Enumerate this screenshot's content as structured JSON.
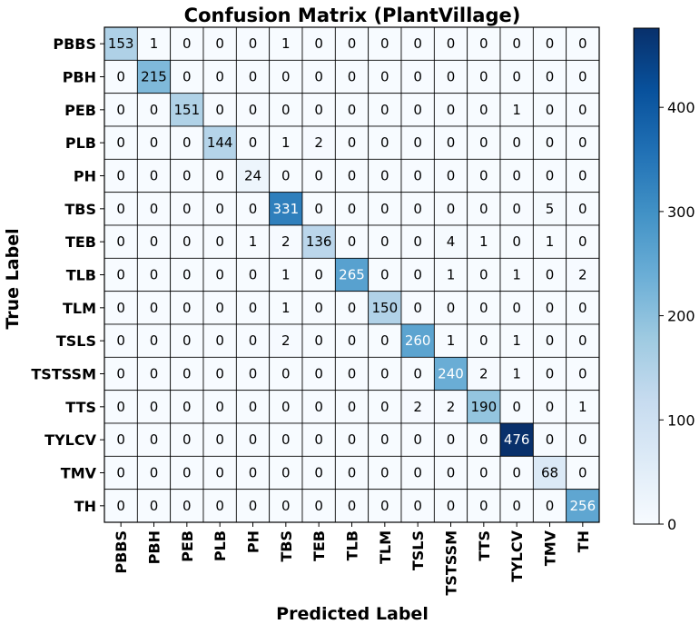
{
  "chart_data": {
    "type": "heatmap",
    "title": "Confusion Matrix (PlantVillage)",
    "xlabel": "Predicted Label",
    "ylabel": "True Label",
    "labels": [
      "PBBS",
      "PBH",
      "PEB",
      "PLB",
      "PH",
      "TBS",
      "TEB",
      "TLB",
      "TLM",
      "TSLS",
      "TSTSSM",
      "TTS",
      "TYLCV",
      "TMV",
      "TH"
    ],
    "matrix": [
      [
        153,
        1,
        0,
        0,
        0,
        1,
        0,
        0,
        0,
        0,
        0,
        0,
        0,
        0,
        0
      ],
      [
        0,
        215,
        0,
        0,
        0,
        0,
        0,
        0,
        0,
        0,
        0,
        0,
        0,
        0,
        0
      ],
      [
        0,
        0,
        151,
        0,
        0,
        0,
        0,
        0,
        0,
        0,
        0,
        0,
        1,
        0,
        0
      ],
      [
        0,
        0,
        0,
        144,
        0,
        1,
        2,
        0,
        0,
        0,
        0,
        0,
        0,
        0,
        0
      ],
      [
        0,
        0,
        0,
        0,
        24,
        0,
        0,
        0,
        0,
        0,
        0,
        0,
        0,
        0,
        0
      ],
      [
        0,
        0,
        0,
        0,
        0,
        331,
        0,
        0,
        0,
        0,
        0,
        0,
        0,
        5,
        0
      ],
      [
        0,
        0,
        0,
        0,
        1,
        2,
        136,
        0,
        0,
        0,
        4,
        1,
        0,
        1,
        0
      ],
      [
        0,
        0,
        0,
        0,
        0,
        1,
        0,
        265,
        0,
        0,
        1,
        0,
        1,
        0,
        2
      ],
      [
        0,
        0,
        0,
        0,
        0,
        1,
        0,
        0,
        150,
        0,
        0,
        0,
        0,
        0,
        0
      ],
      [
        0,
        0,
        0,
        0,
        0,
        2,
        0,
        0,
        0,
        260,
        1,
        0,
        1,
        0,
        0
      ],
      [
        0,
        0,
        0,
        0,
        0,
        0,
        0,
        0,
        0,
        0,
        240,
        2,
        1,
        0,
        0
      ],
      [
        0,
        0,
        0,
        0,
        0,
        0,
        0,
        0,
        0,
        2,
        2,
        190,
        0,
        0,
        1
      ],
      [
        0,
        0,
        0,
        0,
        0,
        0,
        0,
        0,
        0,
        0,
        0,
        0,
        476,
        0,
        0
      ],
      [
        0,
        0,
        0,
        0,
        0,
        0,
        0,
        0,
        0,
        0,
        0,
        0,
        0,
        68,
        0
      ],
      [
        0,
        0,
        0,
        0,
        0,
        0,
        0,
        0,
        0,
        0,
        0,
        0,
        0,
        0,
        256
      ]
    ],
    "colormap": "Blues",
    "color_range": [
      0,
      476
    ],
    "colorbar_ticks": [
      0,
      100,
      200,
      300,
      400
    ],
    "colorbar_placement": "right",
    "grid": true
  }
}
